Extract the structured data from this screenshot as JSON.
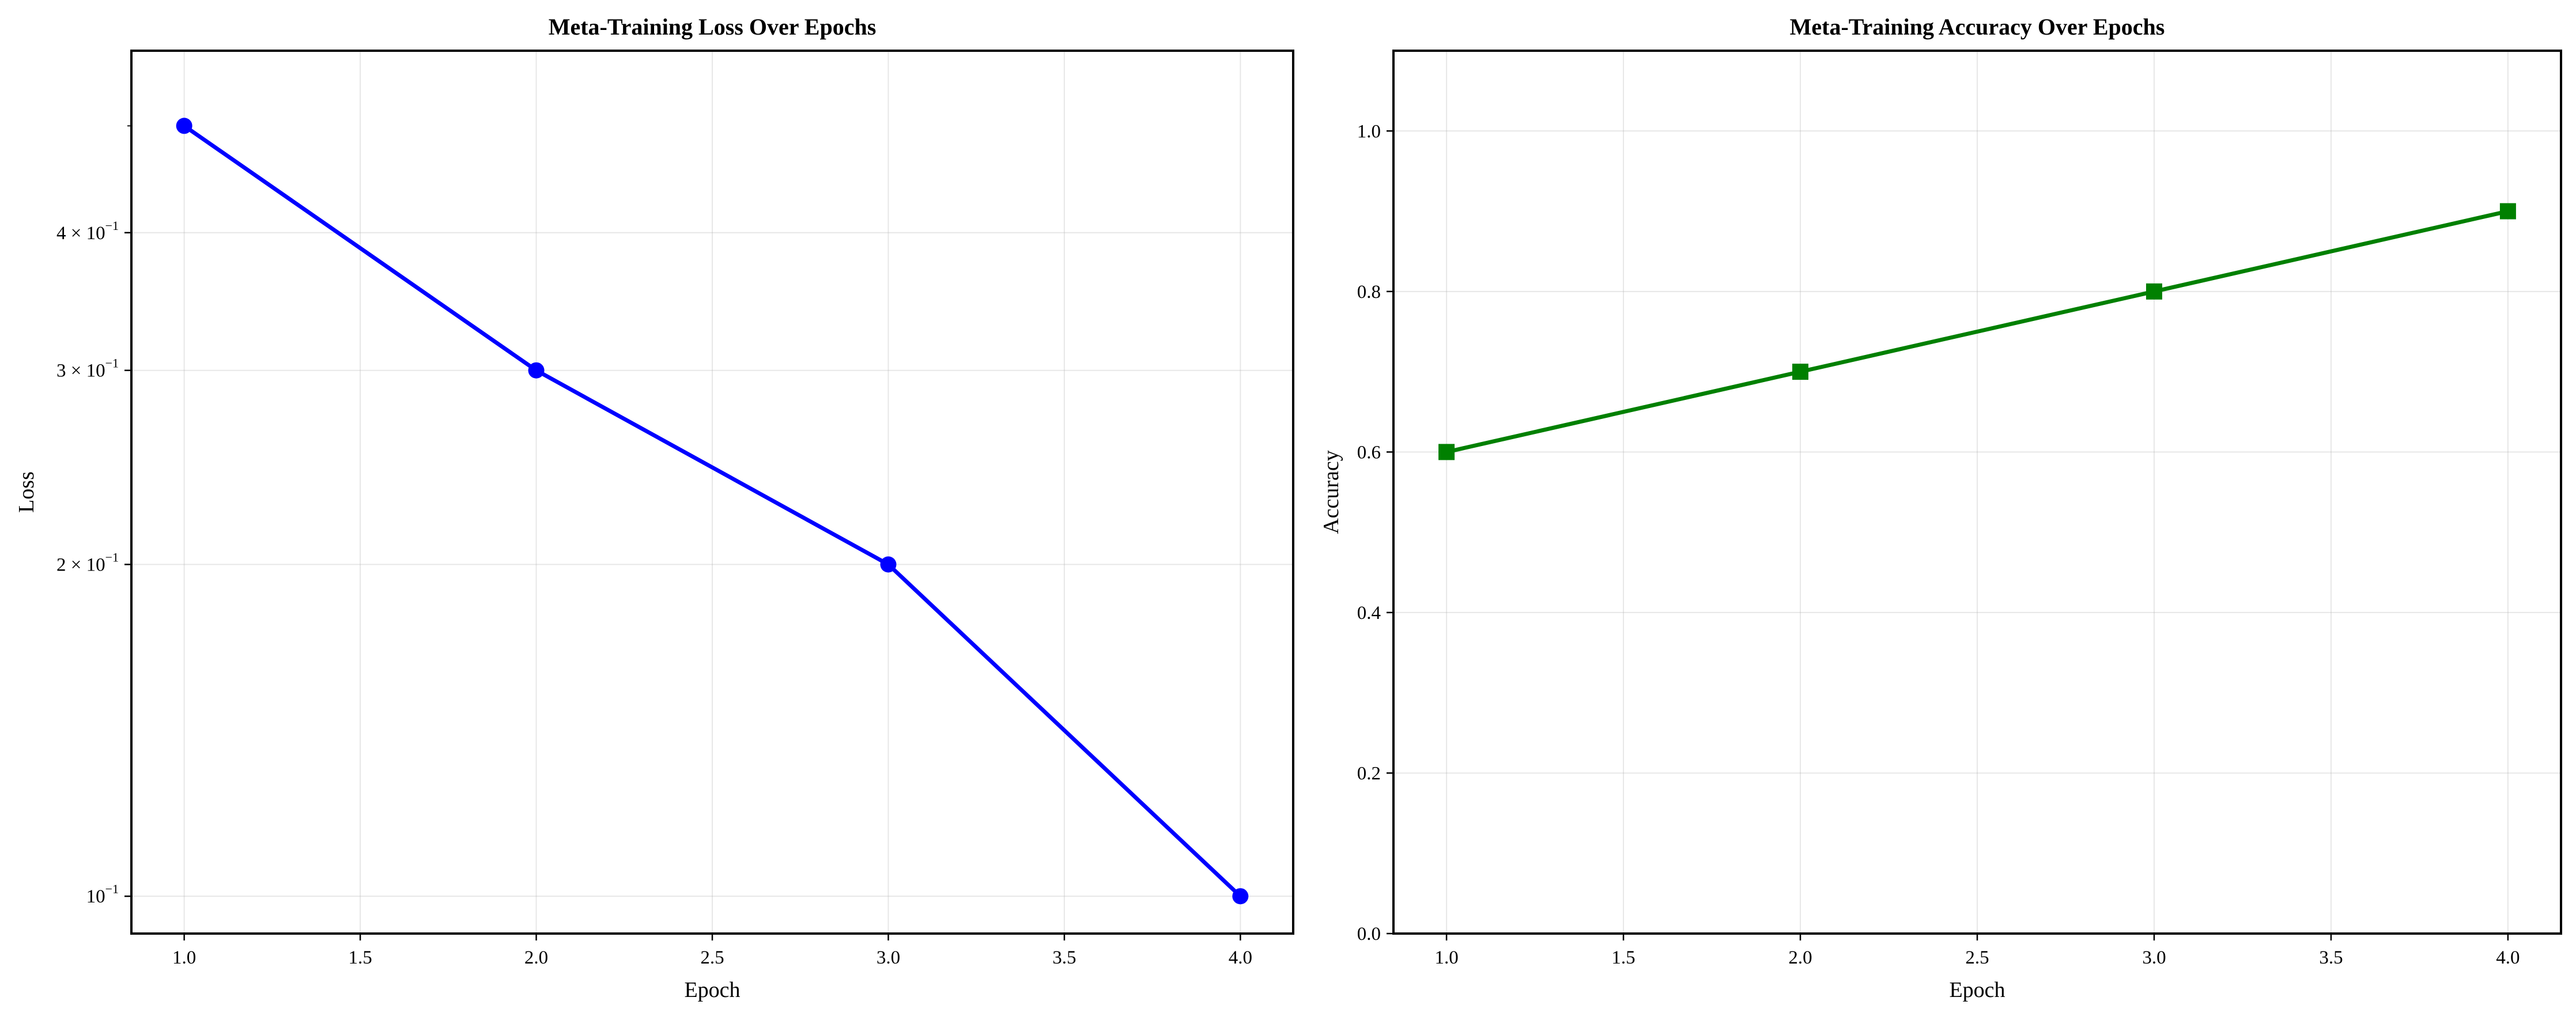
{
  "chart_data": [
    {
      "type": "line",
      "title": "Meta-Training Loss Over Epochs",
      "xlabel": "Epoch",
      "ylabel": "Loss",
      "yscale": "log",
      "x": [
        1,
        2,
        3,
        4
      ],
      "series": [
        {
          "name": "Loss",
          "values": [
            0.5,
            0.3,
            0.2,
            0.1
          ],
          "color": "#0000ff",
          "marker": "circle"
        }
      ],
      "xlim": [
        0.85,
        4.15
      ],
      "ylim": [
        0.0925,
        0.585
      ],
      "xticks": [
        {
          "value": 1.0,
          "label": "1.0"
        },
        {
          "value": 1.5,
          "label": "1.5"
        },
        {
          "value": 2.0,
          "label": "2.0"
        },
        {
          "value": 2.5,
          "label": "2.5"
        },
        {
          "value": 3.0,
          "label": "3.0"
        },
        {
          "value": 3.5,
          "label": "3.5"
        },
        {
          "value": 4.0,
          "label": "4.0"
        }
      ],
      "yticks": [
        {
          "value": 0.1,
          "mantissa": "",
          "exponent": "−1"
        },
        {
          "value": 0.2,
          "mantissa": "2 × ",
          "exponent": "−1"
        },
        {
          "value": 0.3,
          "mantissa": "3 × ",
          "exponent": "−1"
        },
        {
          "value": 0.4,
          "mantissa": "4 × ",
          "exponent": "−1"
        }
      ],
      "minor_yticks": [
        0.5
      ],
      "grid": true
    },
    {
      "type": "line",
      "title": "Meta-Training Accuracy Over Epochs",
      "xlabel": "Epoch",
      "ylabel": "Accuracy",
      "yscale": "linear",
      "x": [
        1,
        2,
        3,
        4
      ],
      "series": [
        {
          "name": "Accuracy",
          "values": [
            0.6,
            0.7,
            0.8,
            0.9
          ],
          "color": "#008000",
          "marker": "square"
        }
      ],
      "xlim": [
        0.85,
        4.15
      ],
      "ylim": [
        0.0,
        1.1
      ],
      "xticks": [
        {
          "value": 1.0,
          "label": "1.0"
        },
        {
          "value": 1.5,
          "label": "1.5"
        },
        {
          "value": 2.0,
          "label": "2.0"
        },
        {
          "value": 2.5,
          "label": "2.5"
        },
        {
          "value": 3.0,
          "label": "3.0"
        },
        {
          "value": 3.5,
          "label": "3.5"
        },
        {
          "value": 4.0,
          "label": "4.0"
        }
      ],
      "yticks": [
        {
          "value": 0.0,
          "label": "0.0"
        },
        {
          "value": 0.2,
          "label": "0.2"
        },
        {
          "value": 0.4,
          "label": "0.4"
        },
        {
          "value": 0.6,
          "label": "0.6"
        },
        {
          "value": 0.8,
          "label": "0.8"
        },
        {
          "value": 1.0,
          "label": "1.0"
        }
      ],
      "grid": true
    }
  ]
}
